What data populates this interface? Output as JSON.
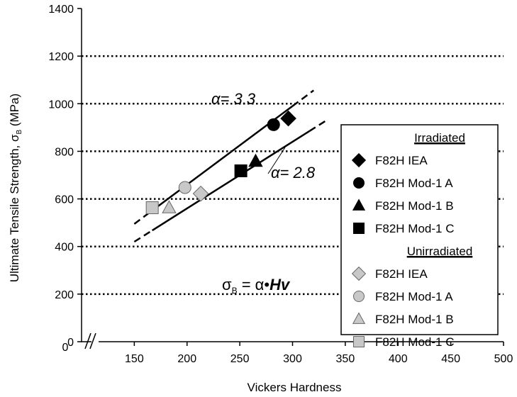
{
  "chart_data": {
    "type": "scatter",
    "xlabel": "Vickers Hardness",
    "ylabel": "Ultimate Tensile Strength, σ",
    "ylabel_sub": "B",
    "ylabel_unit": " (MPa)",
    "xlim": [
      100,
      500
    ],
    "ylim": [
      0,
      1400
    ],
    "x_ticks": [
      150,
      200,
      250,
      300,
      350,
      400,
      450,
      500
    ],
    "y_ticks": [
      0,
      200,
      400,
      600,
      800,
      1000,
      1200,
      1400
    ],
    "y_gridlines": [
      200,
      400,
      600,
      800,
      1000,
      1200
    ],
    "grid_style": "horizontal dotted",
    "axis_break": "x-axis between 0 and 150",
    "x_origin_label": "0",
    "legend_position": "right",
    "legend_groups": [
      {
        "title": "Irradiated",
        "series": [
          {
            "name": "F82H IEA",
            "marker": "diamond",
            "color": "#000000",
            "x": 296,
            "y": 938
          },
          {
            "name": "F82H Mod-1 A",
            "marker": "circle",
            "color": "#000000",
            "x": 282,
            "y": 912
          },
          {
            "name": "F82H Mod-1 B",
            "marker": "triangle",
            "color": "#000000",
            "x": 265,
            "y": 758
          },
          {
            "name": "F82H Mod-1 C",
            "marker": "square",
            "color": "#000000",
            "x": 251,
            "y": 718
          }
        ]
      },
      {
        "title": "Unirradiated",
        "series": [
          {
            "name": "F82H IEA",
            "marker": "diamond",
            "color": "#c8c8c8",
            "x": 213,
            "y": 622
          },
          {
            "name": "F82H Mod-1 A",
            "marker": "circle",
            "color": "#c8c8c8",
            "x": 198,
            "y": 648
          },
          {
            "name": "F82H Mod-1 B",
            "marker": "triangle",
            "color": "#c8c8c8",
            "x": 183,
            "y": 563
          },
          {
            "name": "F82H Mod-1 C",
            "marker": "square",
            "color": "#c8c8c8",
            "x": 167,
            "y": 563
          }
        ]
      }
    ],
    "fit_lines": [
      {
        "label": "α= 3.3",
        "alpha": 3.3,
        "solid_x": [
          167,
          300
        ],
        "dashed_x": [
          [
            150,
            167
          ],
          [
            300,
            320
          ]
        ]
      },
      {
        "label": "α= 2.8",
        "alpha": 2.8,
        "solid_x": [
          167,
          316
        ],
        "dashed_x": [
          [
            150,
            167
          ],
          [
            316,
            333
          ]
        ]
      }
    ],
    "equation": {
      "lhs": "σ",
      "sub": "B",
      "rhs": " = α•",
      "var": "Hv"
    }
  }
}
